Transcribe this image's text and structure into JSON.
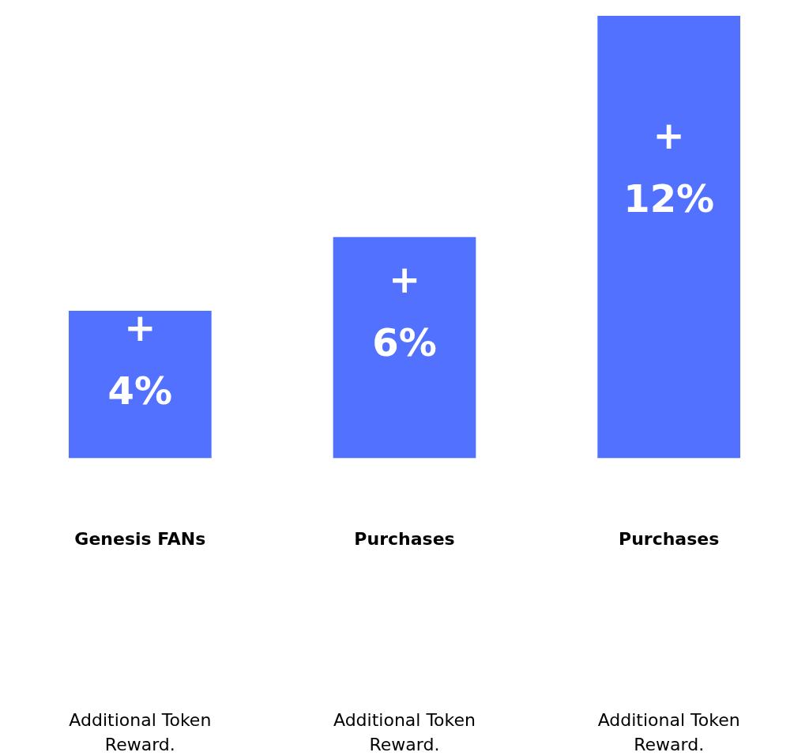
{
  "chart_data": {
    "type": "bar",
    "categories": [
      "Genesis FANs",
      "Purchases",
      "Purchases"
    ],
    "values": [
      4,
      6,
      12
    ],
    "color": "#5271ff",
    "value_labels": [
      "+\n4%",
      "+\n6%",
      "+\n12%"
    ],
    "annotations": [
      "Additional Token\nReward.",
      "Additional Token\nReward.",
      "Additional Token\nReward."
    ],
    "grid": false,
    "legend": false
  }
}
